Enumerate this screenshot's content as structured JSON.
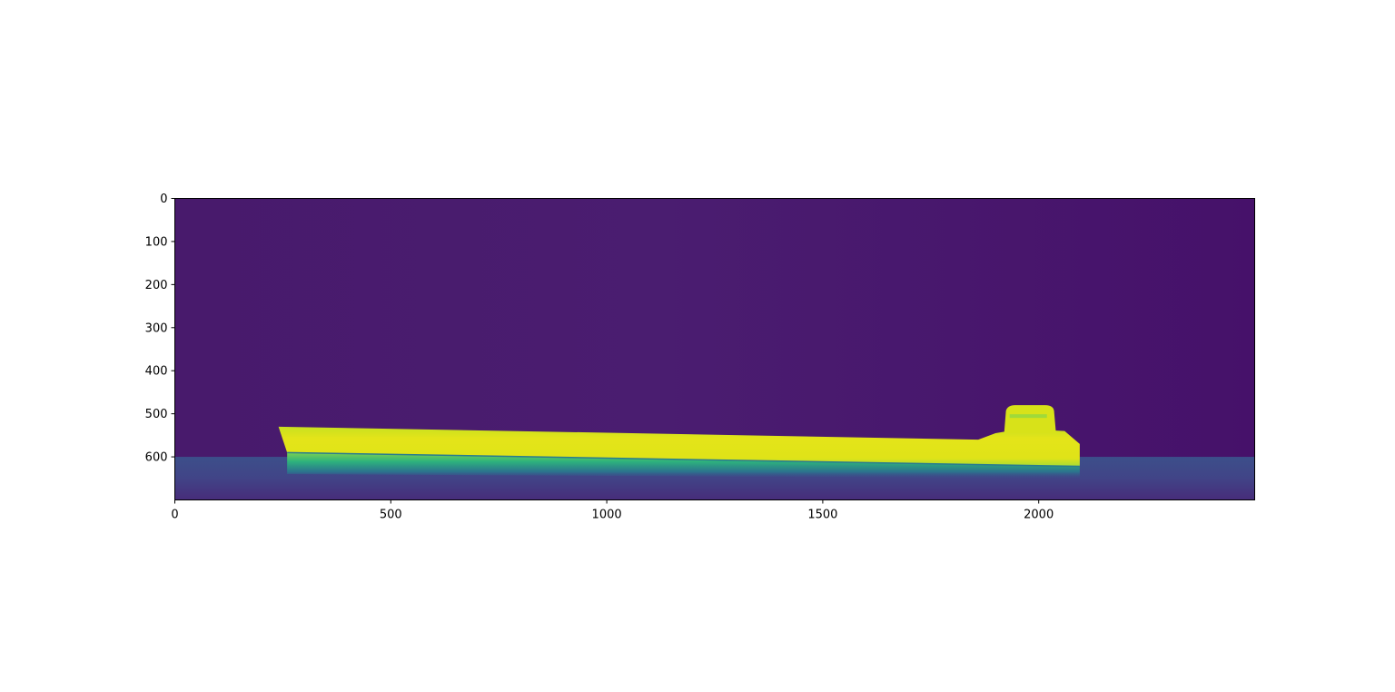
{
  "chart_data": {
    "type": "heatmap",
    "colormap": "viridis",
    "title": "",
    "xlabel": "",
    "ylabel": "",
    "xlim": [
      0,
      2500
    ],
    "ylim": [
      700,
      0
    ],
    "x_ticks": [
      0,
      500,
      1000,
      1500,
      2000
    ],
    "y_ticks": [
      0,
      100,
      200,
      300,
      400,
      500,
      600
    ],
    "image_content": {
      "background_level": 0.1,
      "bright_specimen": {
        "level": 0.95,
        "left_x": 240,
        "right_x": 2095,
        "top_y_left": 530,
        "top_y_right": 560,
        "bottom_y_left": 590,
        "bottom_y_right": 622
      },
      "raised_block": {
        "x_start": 1920,
        "x_end": 2040,
        "top_y": 480,
        "level": 0.9
      },
      "bottom_band": {
        "y_start": 600,
        "y_end": 700,
        "level": 0.25
      },
      "reflection_band": {
        "y_start": 600,
        "y_end": 650,
        "level": 0.55
      }
    },
    "colors": {
      "background": "#481b6d",
      "specimen": "#dde318",
      "reflection": "#2a9d8a",
      "floor": "#3b4a8a"
    }
  }
}
